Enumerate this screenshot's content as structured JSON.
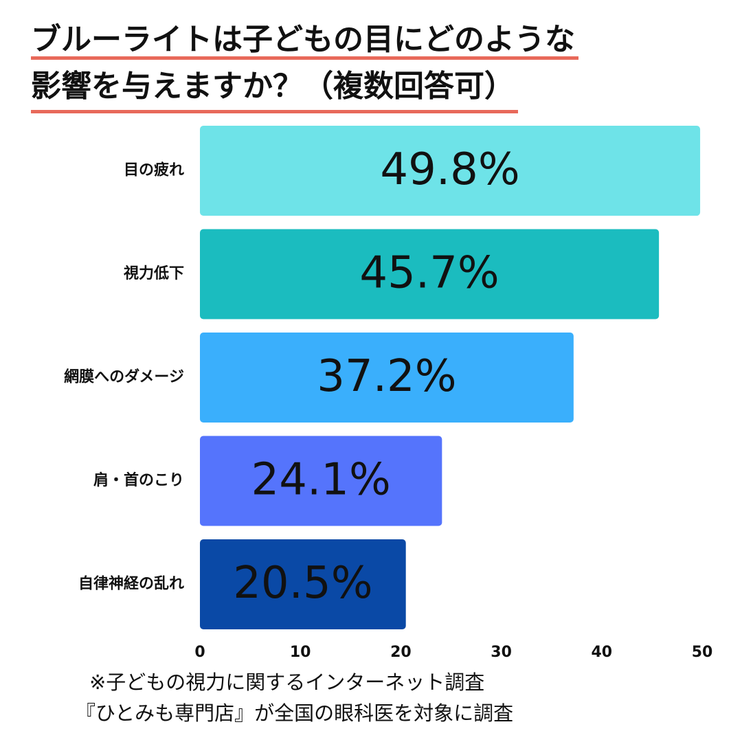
{
  "chart_data": {
    "type": "bar",
    "orientation": "horizontal",
    "title": [
      "ブルーライトは子どもの目にどのような",
      "影響を与えますか？（複数回答可）"
    ],
    "categories": [
      "目の疲れ",
      "視力低下",
      "網膜へのダメージ",
      "肩・首のこり",
      "自律神経の乱れ"
    ],
    "values": [
      49.8,
      45.7,
      37.2,
      24.1,
      20.5
    ],
    "value_labels": [
      "49.8%",
      "45.7%",
      "37.2%",
      "24.1%",
      "20.5%"
    ],
    "colors": [
      "#6ee3e8",
      "#1bbcbf",
      "#3aaffc",
      "#5574fc",
      "#0a49a6"
    ],
    "xlim": [
      0,
      50
    ],
    "xticks": [
      0,
      10,
      20,
      30,
      40,
      50
    ],
    "grid": false,
    "notes": [
      "※子どもの視力に関するインターネット調査",
      "『ひとみも専門店』が全国の眼科医を対象に調査"
    ]
  }
}
